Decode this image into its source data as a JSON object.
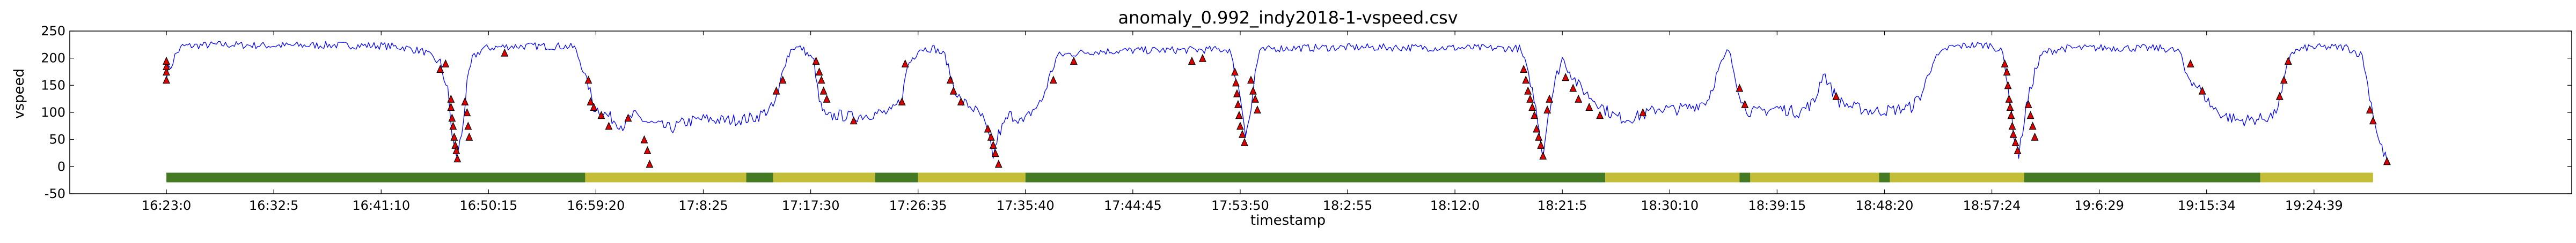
{
  "chart_data": {
    "type": "line",
    "title": "anomaly_0.992_indy2018-1-vspeed.csv",
    "xlabel": "timestamp",
    "ylabel": "vspeed",
    "ylim": [
      -50,
      250
    ],
    "yticks": [
      -50,
      0,
      50,
      100,
      150,
      200,
      250
    ],
    "xlim": [
      -9,
      224
    ],
    "xtick_labels": [
      "16:23:0",
      "16:32:5",
      "16:41:10",
      "16:50:15",
      "16:59:20",
      "17:8:25",
      "17:17:30",
      "17:26:35",
      "17:35:40",
      "17:44:45",
      "17:53:50",
      "18:2:55",
      "18:12:0",
      "18:21:5",
      "18:30:10",
      "18:39:15",
      "18:48:20",
      "18:57:24",
      "19:6:29",
      "19:15:34",
      "19:24:39"
    ],
    "xtick_values": [
      0,
      10,
      20,
      30,
      40,
      50,
      60,
      70,
      80,
      90,
      100,
      110,
      120,
      130,
      140,
      150,
      160,
      170,
      180,
      190,
      200
    ],
    "grid": false,
    "series": [
      {
        "name": "",
        "color": "#0000ff",
        "points": [
          [
            0,
            170
          ],
          [
            0.4,
            185
          ],
          [
            0.8,
            205
          ],
          [
            1.5,
            222
          ],
          [
            5,
            225
          ],
          [
            10,
            223
          ],
          [
            15,
            224
          ],
          [
            20,
            223
          ],
          [
            22,
            220
          ],
          [
            24,
            212
          ],
          [
            25.5,
            190
          ],
          [
            26.2,
            140
          ],
          [
            26.6,
            60
          ],
          [
            27,
            15
          ],
          [
            27.5,
            60
          ],
          [
            28,
            150
          ],
          [
            28.5,
            200
          ],
          [
            29.5,
            218
          ],
          [
            32,
            222
          ],
          [
            37,
            222
          ],
          [
            38,
            220
          ],
          [
            38.5,
            195
          ],
          [
            39.3,
            150
          ],
          [
            39.8,
            110
          ],
          [
            41,
            95
          ],
          [
            42.5,
            75
          ],
          [
            43.5,
            95
          ],
          [
            45,
            80
          ],
          [
            47,
            70
          ],
          [
            48,
            80
          ],
          [
            50,
            88
          ],
          [
            52,
            85
          ],
          [
            54,
            88
          ],
          [
            55,
            92
          ],
          [
            56.5,
            110
          ],
          [
            57,
            135
          ],
          [
            57.5,
            190
          ],
          [
            58.3,
            220
          ],
          [
            59.2,
            218
          ],
          [
            60.3,
            195
          ],
          [
            60.8,
            120
          ],
          [
            61.4,
            90
          ],
          [
            62.5,
            95
          ],
          [
            64,
            92
          ],
          [
            66,
            98
          ],
          [
            67.5,
            100
          ],
          [
            68.5,
            125
          ],
          [
            69,
            185
          ],
          [
            70,
            217
          ],
          [
            71.5,
            218
          ],
          [
            72.5,
            205
          ],
          [
            73.3,
            150
          ],
          [
            74,
            120
          ],
          [
            75,
            110
          ],
          [
            76,
            90
          ],
          [
            76.5,
            60
          ],
          [
            77,
            20
          ],
          [
            77.5,
            60
          ],
          [
            78.5,
            95
          ],
          [
            79.3,
            90
          ],
          [
            79.8,
            80
          ],
          [
            80.5,
            100
          ],
          [
            81.5,
            120
          ],
          [
            82.5,
            180
          ],
          [
            83,
            205
          ],
          [
            86,
            212
          ],
          [
            90,
            214
          ],
          [
            95,
            215
          ],
          [
            99,
            216
          ],
          [
            99.5,
            175
          ],
          [
            100,
            130
          ],
          [
            100.5,
            65
          ],
          [
            101,
            100
          ],
          [
            101.4,
            175
          ],
          [
            101.8,
            212
          ],
          [
            103,
            218
          ],
          [
            110,
            220
          ],
          [
            120,
            219
          ],
          [
            126,
            218
          ],
          [
            126.5,
            195
          ],
          [
            127.2,
            140
          ],
          [
            127.7,
            90
          ],
          [
            128.2,
            20
          ],
          [
            128.7,
            100
          ],
          [
            129.5,
            170
          ],
          [
            130,
            200
          ],
          [
            130.5,
            182
          ],
          [
            131.5,
            150
          ],
          [
            132.5,
            130
          ],
          [
            133.5,
            115
          ],
          [
            134,
            105
          ],
          [
            135,
            92
          ],
          [
            136,
            88
          ],
          [
            137.5,
            95
          ],
          [
            139,
            108
          ],
          [
            140.5,
            105
          ],
          [
            142,
            110
          ],
          [
            143.5,
            122
          ],
          [
            144.5,
            175
          ],
          [
            145.5,
            215
          ],
          [
            146.3,
            150
          ],
          [
            147,
            105
          ],
          [
            148,
            100
          ],
          [
            150,
            108
          ],
          [
            152,
            100
          ],
          [
            153.5,
            120
          ],
          [
            154.3,
            175
          ],
          [
            155,
            145
          ],
          [
            155.8,
            120
          ],
          [
            157,
            110
          ],
          [
            159,
            102
          ],
          [
            161,
            105
          ],
          [
            162.5,
            110
          ],
          [
            163.5,
            135
          ],
          [
            164.5,
            195
          ],
          [
            166,
            220
          ],
          [
            168,
            224
          ],
          [
            170,
            224
          ],
          [
            171,
            210
          ],
          [
            171.5,
            150
          ],
          [
            172,
            65
          ],
          [
            172.5,
            20
          ],
          [
            173.2,
            110
          ],
          [
            174,
            175
          ],
          [
            174.8,
            210
          ],
          [
            176.5,
            218
          ],
          [
            181,
            219
          ],
          [
            186,
            218
          ],
          [
            187.5,
            212
          ],
          [
            188,
            175
          ],
          [
            188.8,
            155
          ],
          [
            189.5,
            140
          ],
          [
            190.5,
            110
          ],
          [
            191.5,
            95
          ],
          [
            193,
            85
          ],
          [
            195,
            88
          ],
          [
            196.3,
            95
          ],
          [
            197,
            135
          ],
          [
            197.8,
            210
          ],
          [
            199.5,
            220
          ],
          [
            203,
            220
          ],
          [
            204.5,
            205
          ],
          [
            205,
            150
          ],
          [
            205.5,
            100
          ],
          [
            206,
            50
          ],
          [
            206.8,
            10
          ]
        ]
      }
    ],
    "anomaly_markers": {
      "shape": "triangle",
      "color": "#e00000",
      "points": [
        [
          0,
          160
        ],
        [
          0,
          175
        ],
        [
          0,
          185
        ],
        [
          0,
          195
        ],
        [
          25.5,
          180
        ],
        [
          26,
          190
        ],
        [
          26.5,
          125
        ],
        [
          26.5,
          110
        ],
        [
          26.6,
          90
        ],
        [
          26.7,
          75
        ],
        [
          26.8,
          55
        ],
        [
          26.9,
          40
        ],
        [
          27,
          30
        ],
        [
          27.1,
          15
        ],
        [
          27.8,
          120
        ],
        [
          28,
          100
        ],
        [
          28.1,
          75
        ],
        [
          28.2,
          55
        ],
        [
          31.5,
          210
        ],
        [
          39.3,
          160
        ],
        [
          39.5,
          120
        ],
        [
          39.8,
          110
        ],
        [
          40.5,
          95
        ],
        [
          41.2,
          75
        ],
        [
          43,
          90
        ],
        [
          44.5,
          50
        ],
        [
          44.8,
          30
        ],
        [
          45,
          5
        ],
        [
          56.8,
          140
        ],
        [
          57.4,
          160
        ],
        [
          60.5,
          195
        ],
        [
          60.8,
          175
        ],
        [
          61,
          160
        ],
        [
          61.2,
          140
        ],
        [
          61.5,
          125
        ],
        [
          64,
          85
        ],
        [
          68.5,
          120
        ],
        [
          68.8,
          190
        ],
        [
          73,
          160
        ],
        [
          73.3,
          140
        ],
        [
          74,
          120
        ],
        [
          76.5,
          70
        ],
        [
          76.8,
          55
        ],
        [
          77,
          40
        ],
        [
          77.2,
          25
        ],
        [
          77.5,
          5
        ],
        [
          82.6,
          160
        ],
        [
          84.5,
          195
        ],
        [
          95.5,
          195
        ],
        [
          96.5,
          200
        ],
        [
          99.5,
          175
        ],
        [
          99.6,
          155
        ],
        [
          99.7,
          135
        ],
        [
          99.8,
          115
        ],
        [
          99.9,
          95
        ],
        [
          100,
          75
        ],
        [
          100.2,
          60
        ],
        [
          100.4,
          45
        ],
        [
          101,
          160
        ],
        [
          101.2,
          140
        ],
        [
          101.4,
          125
        ],
        [
          101.6,
          105
        ],
        [
          126.4,
          180
        ],
        [
          126.6,
          160
        ],
        [
          126.8,
          140
        ],
        [
          127,
          125
        ],
        [
          127.2,
          110
        ],
        [
          127.4,
          95
        ],
        [
          127.6,
          70
        ],
        [
          127.8,
          55
        ],
        [
          128,
          40
        ],
        [
          128.2,
          20
        ],
        [
          128.6,
          105
        ],
        [
          128.8,
          125
        ],
        [
          130.3,
          165
        ],
        [
          131,
          145
        ],
        [
          131.5,
          125
        ],
        [
          132.5,
          110
        ],
        [
          133.5,
          95
        ],
        [
          137.5,
          100
        ],
        [
          146.5,
          145
        ],
        [
          147,
          115
        ],
        [
          155.5,
          130
        ],
        [
          171.2,
          190
        ],
        [
          171.4,
          175
        ],
        [
          171.5,
          150
        ],
        [
          171.6,
          125
        ],
        [
          171.7,
          110
        ],
        [
          171.8,
          95
        ],
        [
          171.9,
          75
        ],
        [
          172,
          60
        ],
        [
          172.2,
          45
        ],
        [
          172.4,
          30
        ],
        [
          173.4,
          115
        ],
        [
          173.6,
          95
        ],
        [
          173.8,
          75
        ],
        [
          174,
          55
        ],
        [
          188.5,
          190
        ],
        [
          189.6,
          140
        ],
        [
          196.8,
          130
        ],
        [
          197.2,
          160
        ],
        [
          197.6,
          195
        ],
        [
          205.2,
          105
        ],
        [
          205.5,
          85
        ],
        [
          206.8,
          10
        ]
      ]
    },
    "state_bar": {
      "y_data": -20,
      "colors": {
        "normal": "#447a23",
        "anomalous": "#c4bd37"
      },
      "segments": [
        {
          "start": 0,
          "end": 39,
          "state": "normal"
        },
        {
          "start": 39,
          "end": 54,
          "state": "anomalous"
        },
        {
          "start": 54,
          "end": 56.5,
          "state": "normal"
        },
        {
          "start": 56.5,
          "end": 66,
          "state": "anomalous"
        },
        {
          "start": 66,
          "end": 70,
          "state": "normal"
        },
        {
          "start": 70,
          "end": 80,
          "state": "anomalous"
        },
        {
          "start": 80,
          "end": 134,
          "state": "normal"
        },
        {
          "start": 134,
          "end": 146.5,
          "state": "anomalous"
        },
        {
          "start": 146.5,
          "end": 147.5,
          "state": "normal"
        },
        {
          "start": 147.5,
          "end": 159.5,
          "state": "anomalous"
        },
        {
          "start": 159.5,
          "end": 160.5,
          "state": "normal"
        },
        {
          "start": 160.5,
          "end": 173,
          "state": "anomalous"
        },
        {
          "start": 173,
          "end": 195,
          "state": "normal"
        },
        {
          "start": 195,
          "end": 205.5,
          "state": "anomalous"
        }
      ]
    }
  }
}
